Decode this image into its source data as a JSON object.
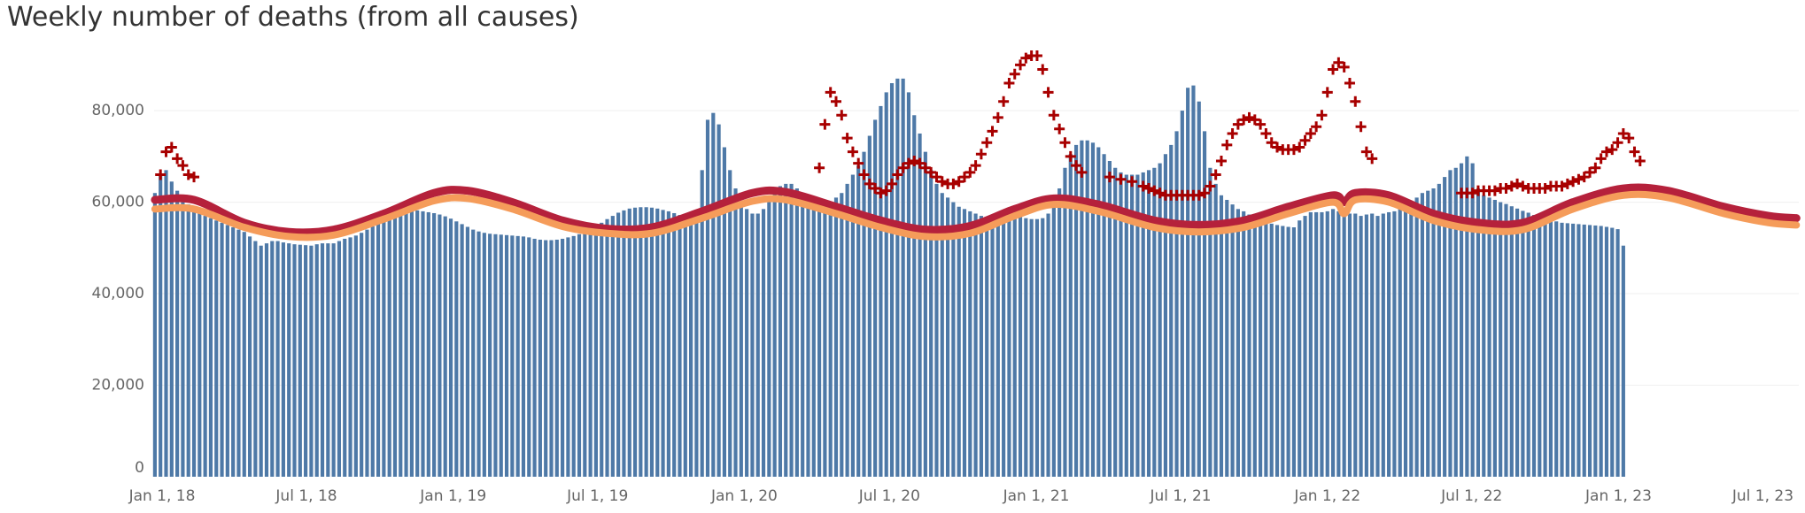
{
  "chart_data": {
    "type": "bar",
    "title": "Weekly number of deaths (from all causes)",
    "xlabel": "",
    "ylabel": "",
    "ylim": [
      0,
      92000
    ],
    "yticks": [
      {
        "value": 0,
        "label": "0"
      },
      {
        "value": 20000,
        "label": "20,000"
      },
      {
        "value": 40000,
        "label": "40,000"
      },
      {
        "value": 60000,
        "label": "60,000"
      },
      {
        "value": 80000,
        "label": "80,000"
      }
    ],
    "xticks": [
      {
        "date": "2018-01-01",
        "label": "Jan 1, 18"
      },
      {
        "date": "2018-07-01",
        "label": "Jul 1, 18"
      },
      {
        "date": "2019-01-01",
        "label": "Jan 1, 19"
      },
      {
        "date": "2019-07-01",
        "label": "Jul 1, 19"
      },
      {
        "date": "2020-01-01",
        "label": "Jan 1, 20"
      },
      {
        "date": "2020-07-01",
        "label": "Jul 1, 20"
      },
      {
        "date": "2021-01-01",
        "label": "Jan 1, 21"
      },
      {
        "date": "2021-07-01",
        "label": "Jul 1, 21"
      },
      {
        "date": "2022-01-01",
        "label": "Jan 1, 22"
      },
      {
        "date": "2022-07-01",
        "label": "Jul 1, 22"
      },
      {
        "date": "2023-01-01",
        "label": "Jan 1, 23"
      },
      {
        "date": "2023-07-01",
        "label": "Jul 1, 23"
      }
    ],
    "grid": true,
    "legend": "none",
    "colors": {
      "bars": "#4e79a7",
      "upper_threshold": "#b5213b",
      "expected": "#f59c5a",
      "excess_markers": "#a80000"
    },
    "weekly_deaths": {
      "start_date": "2017-12-23",
      "interval_days": 7,
      "values": [
        62000,
        66000,
        67000,
        64500,
        62500,
        61000,
        59500,
        58500,
        57500,
        57000,
        56500,
        56000,
        55500,
        55000,
        54500,
        54000,
        53500,
        52500,
        51500,
        50500,
        51000,
        51500,
        51500,
        51200,
        51000,
        50800,
        50700,
        50600,
        50500,
        50800,
        51000,
        51000,
        51000,
        51500,
        52000,
        52300,
        52700,
        53300,
        54000,
        54700,
        55500,
        56500,
        57000,
        57500,
        58000,
        58200,
        58300,
        58200,
        58000,
        57800,
        57600,
        57300,
        56900,
        56400,
        55800,
        55200,
        54600,
        54000,
        53600,
        53300,
        53100,
        53000,
        52900,
        52800,
        52700,
        52600,
        52500,
        52300,
        52000,
        51800,
        51700,
        51700,
        51800,
        52000,
        52300,
        52600,
        53000,
        53500,
        54100,
        54800,
        55500,
        56300,
        57000,
        57700,
        58200,
        58600,
        58800,
        58900,
        58900,
        58800,
        58600,
        58300,
        58000,
        57600,
        57200,
        56800,
        56300,
        57500,
        67000,
        78000,
        79500,
        77000,
        72000,
        67000,
        63000,
        60000,
        58500,
        57500,
        57500,
        58500,
        60500,
        62000,
        63500,
        64000,
        64000,
        63000,
        62000,
        61000,
        60000,
        59500,
        59500,
        60000,
        61000,
        62000,
        64000,
        66000,
        68000,
        71000,
        74500,
        78000,
        81000,
        84000,
        86000,
        87000,
        87000,
        84000,
        79000,
        75000,
        71000,
        67000,
        64000,
        62000,
        61000,
        60000,
        59000,
        58500,
        58000,
        57500,
        57000,
        56700,
        56500,
        56300,
        56300,
        56500,
        57000,
        57000,
        56500,
        56300,
        56300,
        56500,
        57500,
        59500,
        63000,
        67500,
        70500,
        72500,
        73500,
        73500,
        73000,
        72000,
        70500,
        69000,
        67500,
        66500,
        66000,
        66000,
        66000,
        66500,
        67000,
        67500,
        68500,
        70500,
        72500,
        75500,
        80000,
        85000,
        85500,
        82000,
        75500,
        67500,
        64000,
        61500,
        60500,
        59500,
        58500,
        58000,
        57300,
        56800,
        56300,
        55800,
        55300,
        55000,
        54800,
        54600,
        54500,
        56000,
        57000,
        57800,
        57800,
        57800,
        58000,
        58500,
        58000,
        57500,
        57500,
        57500,
        57000,
        57300,
        57500,
        57000,
        57500,
        57800,
        58000,
        58800,
        59500,
        60000,
        61000,
        62000,
        62500,
        63000,
        64000,
        65500,
        67000,
        67500,
        68500,
        70000,
        68500,
        63000,
        61500,
        61000,
        60500,
        60000,
        59600,
        59100,
        58600,
        58100,
        57700,
        57200,
        56800,
        56400,
        56100,
        55800,
        55500,
        55400,
        55300,
        55200,
        55100,
        55000,
        54900,
        54800,
        54600,
        54400,
        54100,
        50500
      ]
    },
    "upper_threshold": {
      "points": [
        [
          "2017-12-23",
          60500
        ],
        [
          "2018-02-10",
          60500
        ],
        [
          "2018-04-14",
          55500
        ],
        [
          "2018-06-09",
          53500
        ],
        [
          "2018-08-04",
          54000
        ],
        [
          "2018-10-06",
          57500
        ],
        [
          "2018-12-08",
          62000
        ],
        [
          "2019-01-19",
          62500
        ],
        [
          "2019-03-16",
          60000
        ],
        [
          "2019-05-18",
          56000
        ],
        [
          "2019-07-13",
          54200
        ],
        [
          "2019-09-07",
          54500
        ],
        [
          "2019-11-09",
          58000
        ],
        [
          "2020-01-11",
          62000
        ],
        [
          "2020-02-22",
          62200
        ],
        [
          "2020-04-25",
          59000
        ],
        [
          "2020-06-20",
          56000
        ],
        [
          "2020-08-15",
          54000
        ],
        [
          "2020-10-10",
          54800
        ],
        [
          "2020-12-05",
          58500
        ],
        [
          "2021-01-23",
          60800
        ],
        [
          "2021-03-20",
          59500
        ],
        [
          "2021-05-29",
          56000
        ],
        [
          "2021-07-24",
          55000
        ],
        [
          "2021-09-18",
          56000
        ],
        [
          "2021-11-13",
          59000
        ],
        [
          "2022-01-08",
          61500
        ],
        [
          "2022-01-22",
          60000
        ],
        [
          "2022-02-05",
          62000
        ],
        [
          "2022-03-19",
          61500
        ],
        [
          "2022-05-14",
          57500
        ],
        [
          "2022-07-09",
          55500
        ],
        [
          "2022-09-03",
          55500
        ],
        [
          "2022-11-05",
          60000
        ],
        [
          "2023-01-07",
          63000
        ],
        [
          "2023-03-04",
          62500
        ],
        [
          "2023-05-13",
          59000
        ],
        [
          "2023-07-08",
          57000
        ],
        [
          "2023-08-12",
          56500
        ]
      ]
    },
    "expected_deaths": {
      "points": [
        [
          "2017-12-23",
          58500
        ],
        [
          "2018-02-10",
          58500
        ],
        [
          "2018-04-14",
          54500
        ],
        [
          "2018-06-09",
          52500
        ],
        [
          "2018-08-04",
          52800
        ],
        [
          "2018-10-06",
          56300
        ],
        [
          "2018-12-08",
          60300
        ],
        [
          "2019-01-19",
          60800
        ],
        [
          "2019-03-16",
          58500
        ],
        [
          "2019-05-18",
          54700
        ],
        [
          "2019-07-13",
          53200
        ],
        [
          "2019-09-07",
          53200
        ],
        [
          "2019-11-09",
          56500
        ],
        [
          "2020-01-11",
          60200
        ],
        [
          "2020-02-22",
          60500
        ],
        [
          "2020-04-25",
          57500
        ],
        [
          "2020-06-20",
          54500
        ],
        [
          "2020-08-15",
          52500
        ],
        [
          "2020-10-10",
          53200
        ],
        [
          "2020-12-05",
          57000
        ],
        [
          "2021-01-23",
          59500
        ],
        [
          "2021-03-20",
          58000
        ],
        [
          "2021-05-29",
          54500
        ],
        [
          "2021-07-24",
          53500
        ],
        [
          "2021-09-18",
          54500
        ],
        [
          "2021-11-13",
          57500
        ],
        [
          "2022-01-08",
          60000
        ],
        [
          "2022-01-22",
          57500
        ],
        [
          "2022-02-05",
          60500
        ],
        [
          "2022-03-19",
          60000
        ],
        [
          "2022-05-14",
          56000
        ],
        [
          "2022-07-09",
          54000
        ],
        [
          "2022-09-03",
          54000
        ],
        [
          "2022-11-05",
          58500
        ],
        [
          "2023-01-07",
          61500
        ],
        [
          "2023-03-04",
          61000
        ],
        [
          "2023-05-13",
          57500
        ],
        [
          "2023-07-08",
          55500
        ],
        [
          "2023-08-12",
          55000
        ]
      ]
    },
    "excess_markers": {
      "points": [
        [
          "2017-12-30",
          66000
        ],
        [
          "2018-01-06",
          71000
        ],
        [
          "2018-01-13",
          72000
        ],
        [
          "2018-01-20",
          69500
        ],
        [
          "2018-01-27",
          68000
        ],
        [
          "2018-02-03",
          66000
        ],
        [
          "2018-02-10",
          65500
        ],
        [
          "2020-04-04",
          67500
        ],
        [
          "2020-04-11",
          77000
        ],
        [
          "2020-04-18",
          84000
        ],
        [
          "2020-04-25",
          82000
        ],
        [
          "2020-05-02",
          79000
        ],
        [
          "2020-05-09",
          74000
        ],
        [
          "2020-05-16",
          71000
        ],
        [
          "2020-05-23",
          68500
        ],
        [
          "2020-05-30",
          66000
        ],
        [
          "2020-06-06",
          64000
        ],
        [
          "2020-06-13",
          63000
        ],
        [
          "2020-06-20",
          62000
        ],
        [
          "2020-06-27",
          62500
        ],
        [
          "2020-07-04",
          64000
        ],
        [
          "2020-07-11",
          66000
        ],
        [
          "2020-07-18",
          67500
        ],
        [
          "2020-07-25",
          68500
        ],
        [
          "2020-08-01",
          69000
        ],
        [
          "2020-08-08",
          68500
        ],
        [
          "2020-08-15",
          67500
        ],
        [
          "2020-08-22",
          66500
        ],
        [
          "2020-08-29",
          65500
        ],
        [
          "2020-09-05",
          64500
        ],
        [
          "2020-09-12",
          64000
        ],
        [
          "2020-09-19",
          64000
        ],
        [
          "2020-09-26",
          64500
        ],
        [
          "2020-10-03",
          65500
        ],
        [
          "2020-10-10",
          66500
        ],
        [
          "2020-10-17",
          68000
        ],
        [
          "2020-10-24",
          70500
        ],
        [
          "2020-10-31",
          73000
        ],
        [
          "2020-11-07",
          75500
        ],
        [
          "2020-11-14",
          78500
        ],
        [
          "2020-11-21",
          82000
        ],
        [
          "2020-11-28",
          86000
        ],
        [
          "2020-12-05",
          88000
        ],
        [
          "2020-12-12",
          90000
        ],
        [
          "2020-12-19",
          91500
        ],
        [
          "2020-12-26",
          92000
        ],
        [
          "2021-01-02",
          92000
        ],
        [
          "2021-01-09",
          89000
        ],
        [
          "2021-01-16",
          84000
        ],
        [
          "2021-01-23",
          79000
        ],
        [
          "2021-01-30",
          76000
        ],
        [
          "2021-02-06",
          73000
        ],
        [
          "2021-02-13",
          70000
        ],
        [
          "2021-02-20",
          68000
        ],
        [
          "2021-02-27",
          66500
        ],
        [
          "2021-04-03",
          65500
        ],
        [
          "2021-04-17",
          65000
        ],
        [
          "2021-05-01",
          64500
        ],
        [
          "2021-05-15",
          63500
        ],
        [
          "2021-05-22",
          63000
        ],
        [
          "2021-05-29",
          62500
        ],
        [
          "2021-06-05",
          62000
        ],
        [
          "2021-06-12",
          61500
        ],
        [
          "2021-06-19",
          61500
        ],
        [
          "2021-06-26",
          61500
        ],
        [
          "2021-07-03",
          61500
        ],
        [
          "2021-07-10",
          61500
        ],
        [
          "2021-07-17",
          61500
        ],
        [
          "2021-07-24",
          61500
        ],
        [
          "2021-07-31",
          62000
        ],
        [
          "2021-08-07",
          63500
        ],
        [
          "2021-08-14",
          66000
        ],
        [
          "2021-08-21",
          69000
        ],
        [
          "2021-08-28",
          72500
        ],
        [
          "2021-09-04",
          75000
        ],
        [
          "2021-09-11",
          77000
        ],
        [
          "2021-09-18",
          78000
        ],
        [
          "2021-09-25",
          78500
        ],
        [
          "2021-10-02",
          78000
        ],
        [
          "2021-10-09",
          77000
        ],
        [
          "2021-10-16",
          75000
        ],
        [
          "2021-10-23",
          73000
        ],
        [
          "2021-10-30",
          72000
        ],
        [
          "2021-11-06",
          71500
        ],
        [
          "2021-11-13",
          71500
        ],
        [
          "2021-11-20",
          71500
        ],
        [
          "2021-11-27",
          72000
        ],
        [
          "2021-12-04",
          73500
        ],
        [
          "2021-12-11",
          75000
        ],
        [
          "2021-12-18",
          76500
        ],
        [
          "2021-12-25",
          79000
        ],
        [
          "2022-01-01",
          84000
        ],
        [
          "2022-01-08",
          89000
        ],
        [
          "2022-01-15",
          90500
        ],
        [
          "2022-01-22",
          89500
        ],
        [
          "2022-01-29",
          86000
        ],
        [
          "2022-02-05",
          82000
        ],
        [
          "2022-02-12",
          76500
        ],
        [
          "2022-02-19",
          71000
        ],
        [
          "2022-02-26",
          69500
        ],
        [
          "2022-06-18",
          62000
        ],
        [
          "2022-06-25",
          62000
        ],
        [
          "2022-07-02",
          62000
        ],
        [
          "2022-07-09",
          62500
        ],
        [
          "2022-07-16",
          62500
        ],
        [
          "2022-07-23",
          62500
        ],
        [
          "2022-07-30",
          62500
        ],
        [
          "2022-08-06",
          63000
        ],
        [
          "2022-08-13",
          63000
        ],
        [
          "2022-08-20",
          63500
        ],
        [
          "2022-08-27",
          64000
        ],
        [
          "2022-09-03",
          63500
        ],
        [
          "2022-09-10",
          63000
        ],
        [
          "2022-09-17",
          63000
        ],
        [
          "2022-09-24",
          63000
        ],
        [
          "2022-10-01",
          63000
        ],
        [
          "2022-10-08",
          63500
        ],
        [
          "2022-10-15",
          63500
        ],
        [
          "2022-10-22",
          63500
        ],
        [
          "2022-10-29",
          64000
        ],
        [
          "2022-11-05",
          64500
        ],
        [
          "2022-11-12",
          65000
        ],
        [
          "2022-11-19",
          65500
        ],
        [
          "2022-11-26",
          66500
        ],
        [
          "2022-12-03",
          67500
        ],
        [
          "2022-12-10",
          69500
        ],
        [
          "2022-12-17",
          71000
        ],
        [
          "2022-12-24",
          71500
        ],
        [
          "2022-12-31",
          73000
        ],
        [
          "2023-01-07",
          75000
        ],
        [
          "2023-01-14",
          74000
        ],
        [
          "2023-01-21",
          71000
        ],
        [
          "2023-01-28",
          69000
        ]
      ]
    }
  }
}
